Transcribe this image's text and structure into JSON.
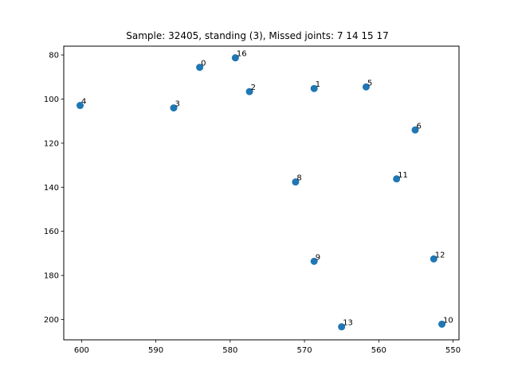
{
  "chart_data": {
    "type": "scatter",
    "title": "Sample: 32405, standing (3), Missed joints: 7  14  15  17",
    "xlabel": "",
    "ylabel": "",
    "x_inverted": true,
    "y_inverted": true,
    "xlim": [
      602.4,
      549.2
    ],
    "ylim": [
      209.2,
      76.0
    ],
    "xticks": [
      600,
      590,
      580,
      570,
      560,
      550
    ],
    "yticks": [
      80,
      100,
      120,
      140,
      160,
      180,
      200
    ],
    "marker_color": "#1f77b4",
    "grid": false,
    "points": [
      {
        "label": "0",
        "x": 584.1,
        "y": 85.6
      },
      {
        "label": "1",
        "x": 568.7,
        "y": 95.2
      },
      {
        "label": "2",
        "x": 577.4,
        "y": 96.6
      },
      {
        "label": "3",
        "x": 587.6,
        "y": 104.0
      },
      {
        "label": "4",
        "x": 600.2,
        "y": 102.9
      },
      {
        "label": "5",
        "x": 561.7,
        "y": 94.5
      },
      {
        "label": "6",
        "x": 555.1,
        "y": 114.0
      },
      {
        "label": "8",
        "x": 571.2,
        "y": 137.6
      },
      {
        "label": "9",
        "x": 568.7,
        "y": 173.6
      },
      {
        "label": "10",
        "x": 551.5,
        "y": 202.1
      },
      {
        "label": "11",
        "x": 557.6,
        "y": 136.2
      },
      {
        "label": "12",
        "x": 552.6,
        "y": 172.5
      },
      {
        "label": "13",
        "x": 565.0,
        "y": 203.3
      },
      {
        "label": "16",
        "x": 579.3,
        "y": 81.3
      }
    ]
  }
}
